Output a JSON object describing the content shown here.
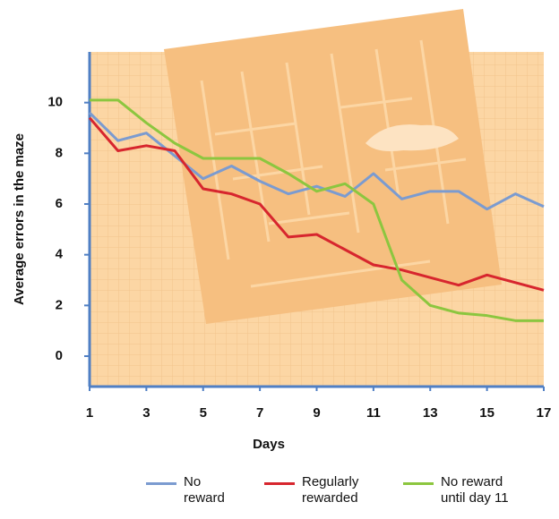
{
  "chart_data": {
    "type": "line",
    "x_label": "Days",
    "y_label": "Average errors in the maze",
    "x": [
      1,
      2,
      3,
      4,
      5,
      6,
      7,
      8,
      9,
      10,
      11,
      12,
      13,
      14,
      15,
      16,
      17
    ],
    "xlim": [
      1,
      17
    ],
    "xticks": [
      1,
      3,
      5,
      7,
      9,
      11,
      13,
      15,
      17
    ],
    "ylim": [
      -1.2,
      12
    ],
    "yticks": [
      0,
      2,
      4,
      6,
      8,
      10
    ],
    "series": [
      {
        "name": "No reward",
        "color": "#7b9bd0",
        "values": [
          9.6,
          8.5,
          8.8,
          7.9,
          7.0,
          7.5,
          6.9,
          6.4,
          6.7,
          6.3,
          7.2,
          6.2,
          6.5,
          6.5,
          5.8,
          6.4,
          5.9
        ]
      },
      {
        "name": "Regularly rewarded",
        "color": "#d7262e",
        "values": [
          9.4,
          8.1,
          8.3,
          8.1,
          6.6,
          6.4,
          6.0,
          4.7,
          4.8,
          4.2,
          3.6,
          3.4,
          3.1,
          2.8,
          3.2,
          2.9,
          2.6
        ]
      },
      {
        "name": "No reward until day 11",
        "color": "#8cc63f",
        "values": [
          10.1,
          10.1,
          9.2,
          8.4,
          7.8,
          7.8,
          7.8,
          7.2,
          6.5,
          6.8,
          6.0,
          3.0,
          2.0,
          1.7,
          1.6,
          1.4,
          1.4
        ]
      }
    ]
  }
}
